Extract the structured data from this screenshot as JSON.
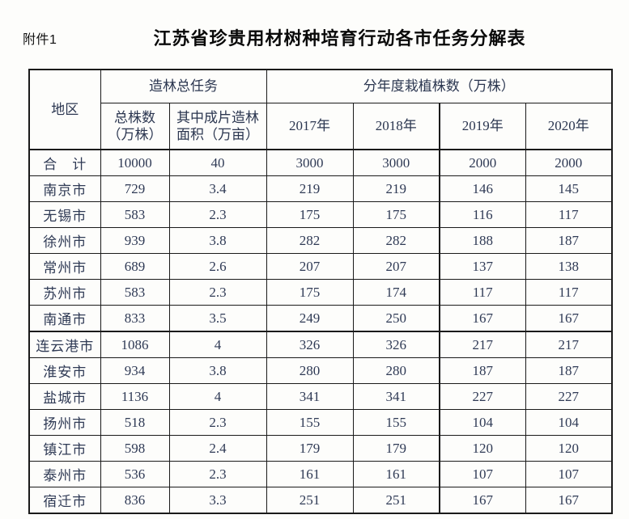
{
  "page": {
    "attachment_label": "附件1",
    "title": "江苏省珍贵用材树种培育行动各市任务分解表"
  },
  "colors": {
    "background": "#fdfdfb",
    "border": "#1a1a1a",
    "table_text": "#2f3a55",
    "title_text": "#0a0a0a"
  },
  "table": {
    "header": {
      "region": "地区",
      "afforestation_group": "造林总任务",
      "total_plants": "总株数（万株）",
      "contiguous_area": "其中成片造林面积（万亩）",
      "annual_group": "分年度栽植株数（万株）",
      "years": [
        "2017年",
        "2018年",
        "2019年",
        "2020年"
      ]
    },
    "rows": [
      {
        "region": "合　计",
        "total": "10000",
        "area": "40",
        "y2017": "3000",
        "y2018": "3000",
        "y2019": "2000",
        "y2020": "2000"
      },
      {
        "region": "南京市",
        "total": "729",
        "area": "3.4",
        "y2017": "219",
        "y2018": "219",
        "y2019": "146",
        "y2020": "145"
      },
      {
        "region": "无锡市",
        "total": "583",
        "area": "2.3",
        "y2017": "175",
        "y2018": "175",
        "y2019": "116",
        "y2020": "117"
      },
      {
        "region": "徐州市",
        "total": "939",
        "area": "3.8",
        "y2017": "282",
        "y2018": "282",
        "y2019": "188",
        "y2020": "187"
      },
      {
        "region": "常州市",
        "total": "689",
        "area": "2.6",
        "y2017": "207",
        "y2018": "207",
        "y2019": "137",
        "y2020": "138"
      },
      {
        "region": "苏州市",
        "total": "583",
        "area": "2.3",
        "y2017": "175",
        "y2018": "174",
        "y2019": "117",
        "y2020": "117"
      },
      {
        "region": "南通市",
        "total": "833",
        "area": "3.5",
        "y2017": "249",
        "y2018": "250",
        "y2019": "167",
        "y2020": "167"
      },
      {
        "region": "连云港市",
        "total": "1086",
        "area": "4",
        "y2017": "326",
        "y2018": "326",
        "y2019": "217",
        "y2020": "217"
      },
      {
        "region": "淮安市",
        "total": "934",
        "area": "3.8",
        "y2017": "280",
        "y2018": "280",
        "y2019": "187",
        "y2020": "187"
      },
      {
        "region": "盐城市",
        "total": "1136",
        "area": "4",
        "y2017": "341",
        "y2018": "341",
        "y2019": "227",
        "y2020": "227"
      },
      {
        "region": "扬州市",
        "total": "518",
        "area": "2.3",
        "y2017": "155",
        "y2018": "155",
        "y2019": "104",
        "y2020": "104"
      },
      {
        "region": "镇江市",
        "total": "598",
        "area": "2.4",
        "y2017": "179",
        "y2018": "179",
        "y2019": "120",
        "y2020": "120"
      },
      {
        "region": "泰州市",
        "total": "536",
        "area": "2.3",
        "y2017": "161",
        "y2018": "161",
        "y2019": "107",
        "y2020": "107"
      },
      {
        "region": "宿迁市",
        "total": "836",
        "area": "3.3",
        "y2017": "251",
        "y2018": "251",
        "y2019": "167",
        "y2020": "167"
      }
    ]
  }
}
